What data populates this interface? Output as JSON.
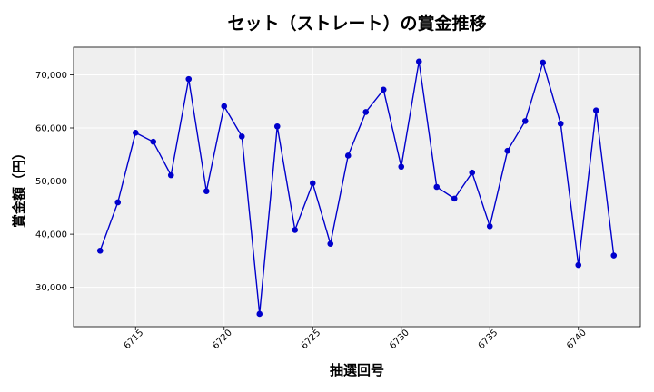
{
  "chart_data": {
    "type": "line",
    "title": "セット（ストレート）の賞金推移",
    "xlabel": "抽選回号",
    "ylabel": "賞金額（円）",
    "x": [
      6713,
      6714,
      6715,
      6716,
      6717,
      6718,
      6719,
      6720,
      6721,
      6722,
      6723,
      6724,
      6725,
      6726,
      6727,
      6728,
      6729,
      6730,
      6731,
      6732,
      6733,
      6734,
      6735,
      6736,
      6737,
      6738,
      6739,
      6740,
      6741,
      6742
    ],
    "series": [
      {
        "values": [
          36900,
          46000,
          59100,
          57400,
          51100,
          69200,
          48100,
          64100,
          58400,
          25000,
          60300,
          40800,
          49600,
          38200,
          54800,
          63000,
          67200,
          52700,
          72500,
          48900,
          46700,
          51600,
          41500,
          55700,
          61300,
          72300,
          60800,
          34200,
          63300,
          36000
        ],
        "color": "#0000cc"
      }
    ],
    "xlim": [
      6711.5,
      6743.5
    ],
    "ylim": [
      22600,
      75200
    ],
    "xticks": [
      6715,
      6720,
      6725,
      6730,
      6735,
      6740
    ],
    "yticks": [
      30000,
      40000,
      50000,
      60000,
      70000
    ],
    "ytick_labels": [
      "30,000",
      "40,000",
      "50,000",
      "60,000",
      "70,000"
    ],
    "grid": true,
    "background": "#efefef"
  }
}
